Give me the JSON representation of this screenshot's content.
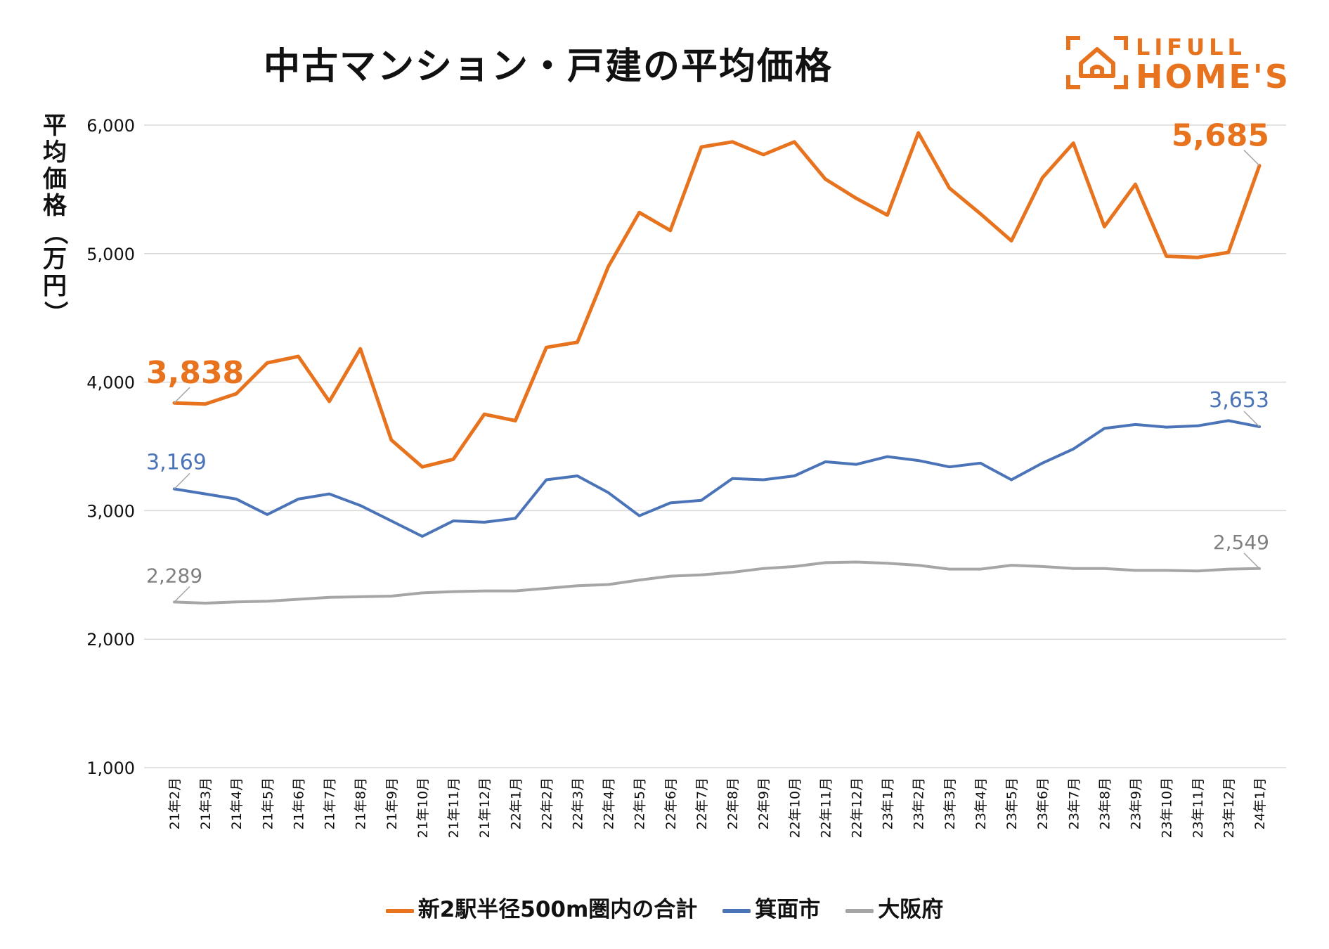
{
  "header": {
    "title": "中古マンション・戸建の平均価格",
    "logo_line1": "LIFULL",
    "logo_line2": "HOME'S"
  },
  "colors": {
    "orange": "#E8731F",
    "blue": "#4A73B8",
    "gray": "#A6A6A6",
    "grid": "#D9D9D9"
  },
  "chart_data": {
    "type": "line",
    "title": "中古マンション・戸建の平均価格",
    "ylabel": "平均価格（万円）",
    "xlabel": "",
    "ylim": [
      1000,
      6000
    ],
    "yticks": [
      1000,
      2000,
      3000,
      4000,
      5000,
      6000
    ],
    "ytick_labels": [
      "1,000",
      "2,000",
      "3,000",
      "4,000",
      "5,000",
      "6,000"
    ],
    "grid": true,
    "legend_position": "bottom",
    "categories": [
      "21年2月",
      "21年3月",
      "21年4月",
      "21年5月",
      "21年6月",
      "21年7月",
      "21年8月",
      "21年9月",
      "21年10月",
      "21年11月",
      "21年12月",
      "22年1月",
      "22年2月",
      "22年3月",
      "22年4月",
      "22年5月",
      "22年6月",
      "22年7月",
      "22年8月",
      "22年9月",
      "22年10月",
      "22年11月",
      "22年12月",
      "23年1月",
      "23年2月",
      "23年3月",
      "23年4月",
      "23年5月",
      "23年6月",
      "23年7月",
      "23年8月",
      "23年9月",
      "23年10月",
      "23年11月",
      "23年12月",
      "24年1月"
    ],
    "series": [
      {
        "name": "新2駅半径500m圏内の合計",
        "color": "#E8731F",
        "values": [
          3838,
          3830,
          3910,
          4150,
          4200,
          3850,
          4260,
          3550,
          3340,
          3400,
          3750,
          3700,
          4270,
          4310,
          4900,
          5320,
          5180,
          5830,
          5870,
          5770,
          5870,
          5580,
          5430,
          5300,
          5940,
          5510,
          5310,
          5100,
          5590,
          5860,
          5210,
          5540,
          4980,
          4970,
          5010,
          5685
        ],
        "labels": [
          {
            "index": 0,
            "text": "3,838"
          },
          {
            "index": 35,
            "text": "5,685"
          }
        ]
      },
      {
        "name": "箕面市",
        "color": "#4A73B8",
        "values": [
          3169,
          3130,
          3090,
          2970,
          3090,
          3130,
          3040,
          2920,
          2800,
          2920,
          2910,
          2940,
          3240,
          3270,
          3140,
          2960,
          3060,
          3080,
          3250,
          3240,
          3270,
          3380,
          3360,
          3420,
          3390,
          3340,
          3370,
          3240,
          3370,
          3480,
          3640,
          3670,
          3650,
          3660,
          3700,
          3653
        ],
        "labels": [
          {
            "index": 0,
            "text": "3,169"
          },
          {
            "index": 35,
            "text": "3,653"
          }
        ]
      },
      {
        "name": "大阪府",
        "color": "#A6A6A6",
        "values": [
          2289,
          2280,
          2290,
          2295,
          2310,
          2325,
          2330,
          2335,
          2360,
          2370,
          2375,
          2375,
          2395,
          2415,
          2425,
          2460,
          2490,
          2500,
          2520,
          2550,
          2565,
          2595,
          2600,
          2590,
          2575,
          2545,
          2545,
          2575,
          2565,
          2550,
          2550,
          2535,
          2535,
          2530,
          2545,
          2549
        ],
        "labels": [
          {
            "index": 0,
            "text": "2,289"
          },
          {
            "index": 35,
            "text": "2,549"
          }
        ]
      }
    ]
  }
}
